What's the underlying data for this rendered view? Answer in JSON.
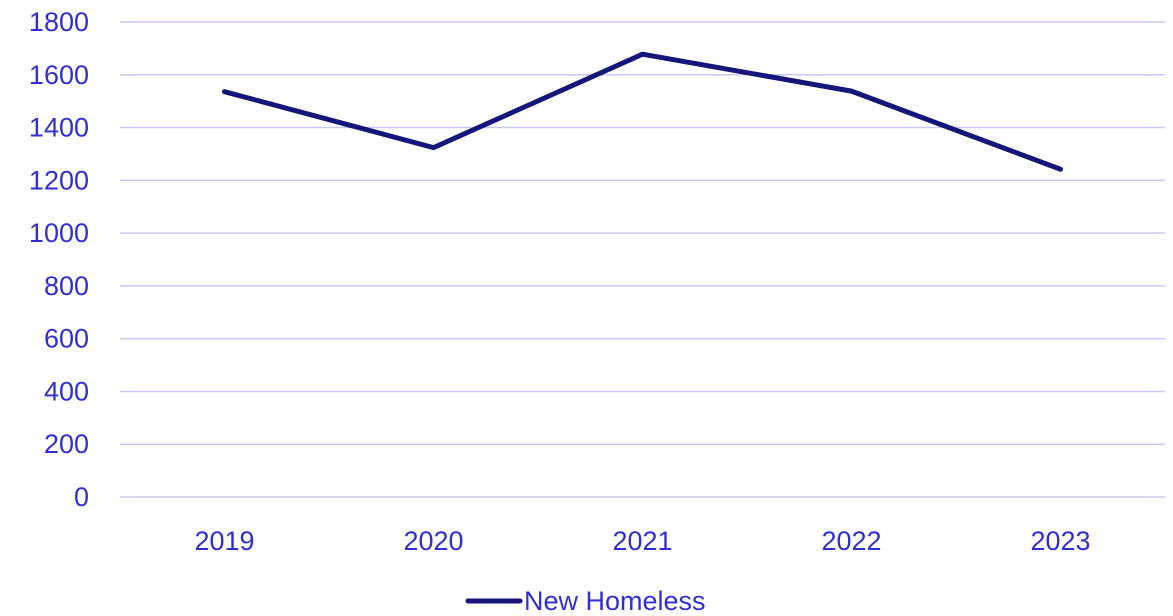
{
  "chart_data": {
    "type": "line",
    "categories": [
      "2019",
      "2020",
      "2021",
      "2022",
      "2023"
    ],
    "series": [
      {
        "name": "New Homeless",
        "values": [
          1536,
          1324,
          1678,
          1538,
          1242
        ]
      }
    ],
    "ylim": [
      0,
      1800
    ],
    "yticks": [
      "0",
      "200",
      "400",
      "600",
      "800",
      "1000",
      "1200",
      "1400",
      "1600",
      "1800"
    ],
    "grid": true,
    "legend_position": "bottom-center",
    "colors": {
      "line": "#14167a",
      "text": "#2f2fd8",
      "grid": "#c8c8f0"
    }
  }
}
